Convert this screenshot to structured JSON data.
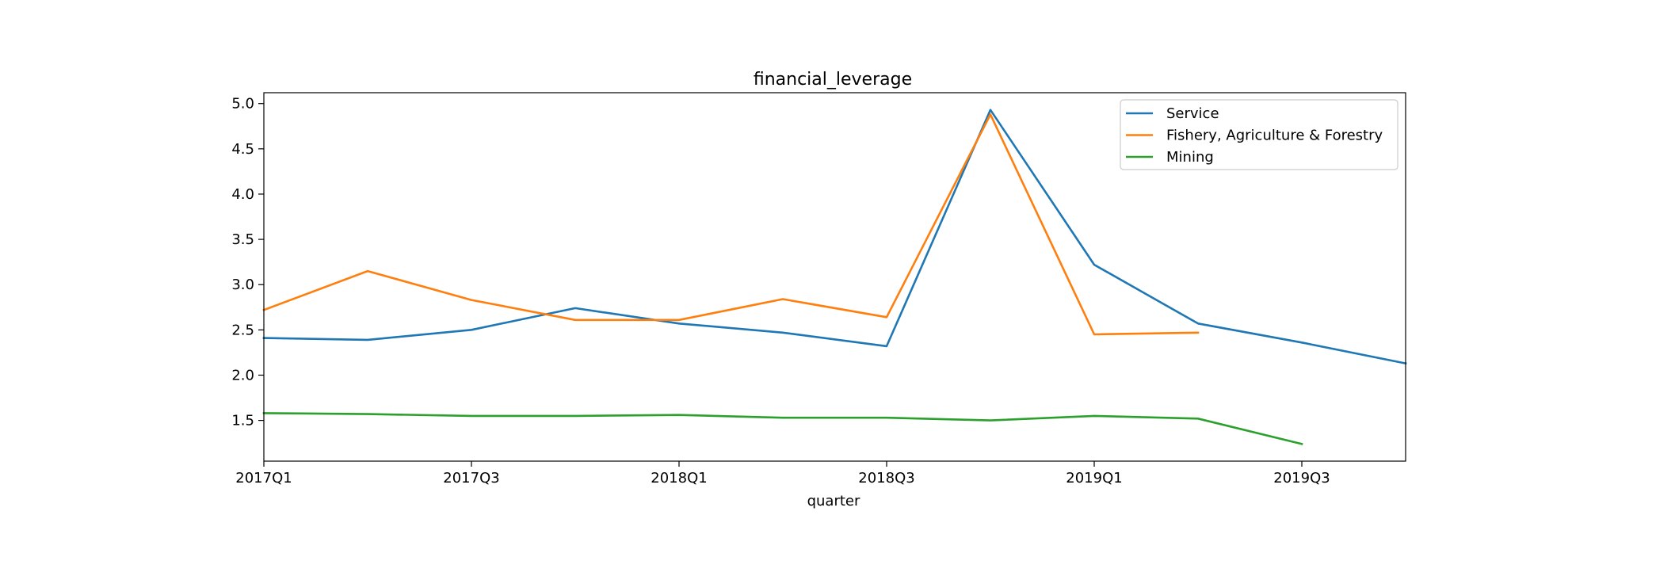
{
  "chart_data": {
    "type": "line",
    "title": "financial_leverage",
    "xlabel": "quarter",
    "ylabel": "",
    "categories": [
      "2017Q1",
      "2017Q2",
      "2017Q3",
      "2017Q4",
      "2018Q1",
      "2018Q2",
      "2018Q3",
      "2018Q4",
      "2019Q1",
      "2019Q2",
      "2019Q3",
      "2019Q4"
    ],
    "x_tick_labels": [
      "2017Q1",
      "2017Q3",
      "2018Q1",
      "2018Q3",
      "2019Q1",
      "2019Q3"
    ],
    "y_ticks": [
      1.5,
      2.0,
      2.5,
      3.0,
      3.5,
      4.0,
      4.5,
      5.0
    ],
    "y_tick_labels": [
      "1.5",
      "2.0",
      "2.5",
      "3.0",
      "3.5",
      "4.0",
      "4.5",
      "5.0"
    ],
    "ylim": [
      1.05,
      5.12
    ],
    "grid": false,
    "legend_position": "top-right",
    "series": [
      {
        "name": "Service",
        "color": "#1f77b4",
        "values": [
          2.41,
          2.39,
          2.5,
          2.74,
          2.57,
          2.47,
          2.32,
          4.93,
          3.22,
          2.57,
          2.36,
          2.13
        ]
      },
      {
        "name": "Fishery, Agriculture & Forestry",
        "color": "#ff7f0e",
        "values": [
          2.72,
          3.15,
          2.83,
          2.61,
          2.61,
          2.84,
          2.64,
          4.88,
          2.45,
          2.47,
          null,
          null
        ]
      },
      {
        "name": "Mining",
        "color": "#2ca02c",
        "values": [
          1.58,
          1.57,
          1.55,
          1.55,
          1.56,
          1.53,
          1.53,
          1.5,
          1.55,
          1.52,
          1.24,
          null
        ]
      }
    ]
  }
}
